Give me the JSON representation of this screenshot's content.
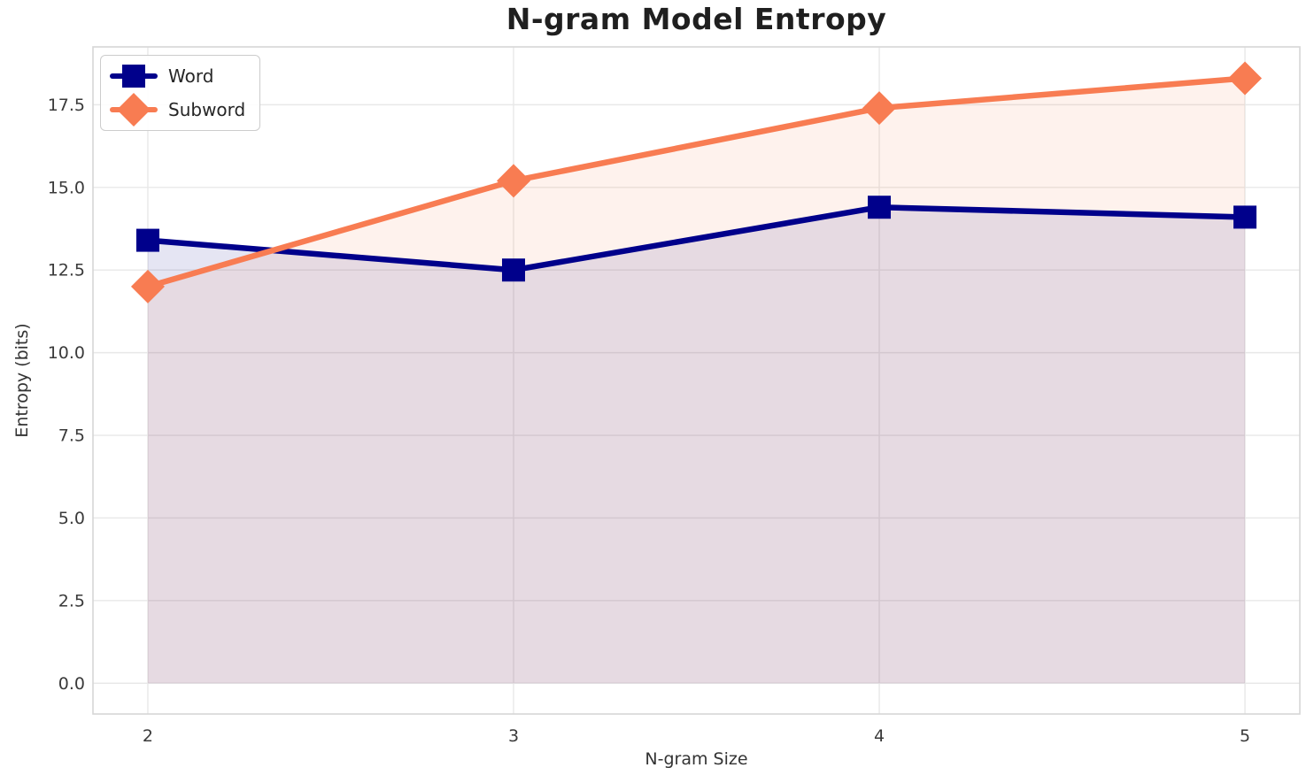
{
  "chart_data": {
    "type": "line",
    "title": "N-gram Model Entropy",
    "xlabel": "N-gram Size",
    "ylabel": "Entropy (bits)",
    "x": [
      2,
      3,
      4,
      5
    ],
    "series": [
      {
        "name": "Word",
        "values": [
          13.4,
          12.5,
          14.4,
          14.1
        ],
        "color": "#00008B",
        "marker": "square",
        "area_fill_to_zero": true
      },
      {
        "name": "Subword",
        "values": [
          12.0,
          15.2,
          17.4,
          18.3
        ],
        "color": "#F87C52",
        "marker": "diamond",
        "area_fill_to_zero": true
      }
    ],
    "x_ticks": [
      "2",
      "3",
      "4",
      "5"
    ],
    "x_tick_values": [
      2,
      3,
      4,
      5
    ],
    "y_ticks": [
      "0.0",
      "2.5",
      "5.0",
      "7.5",
      "10.0",
      "12.5",
      "15.0",
      "17.5"
    ],
    "y_tick_values": [
      0,
      2.5,
      5,
      7.5,
      10,
      12.5,
      15,
      17.5
    ],
    "xlim": [
      1.85,
      5.15
    ],
    "ylim": [
      -0.93,
      19.25
    ],
    "grid": true,
    "fill_alpha": 0.1,
    "legend_position": "upper left",
    "grid_color": "#e8e8e8",
    "spine_color": "#d6d6d6",
    "tick_label_color": "#3a3a3a"
  }
}
